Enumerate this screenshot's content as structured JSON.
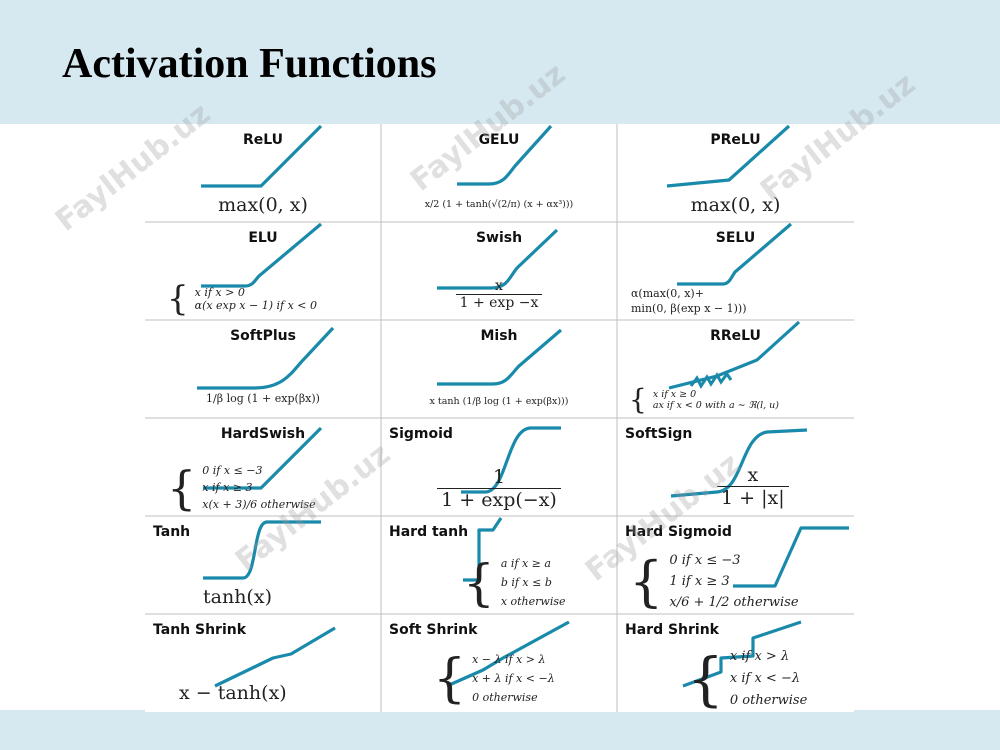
{
  "title": "Activation Functions",
  "watermark": "FaylHub.uz",
  "colors": {
    "curve": "#1a8aab",
    "band": "#d6e9f1",
    "grid_line": "#bfbfbf"
  },
  "cells": [
    {
      "name": "ReLU",
      "curve": "relu",
      "formula": "max(0, x)"
    },
    {
      "name": "GELU",
      "curve": "gelu",
      "formula": "x/2 (1 + tanh(√(2/π) (x + αx³)))"
    },
    {
      "name": "PReLU",
      "curve": "prelu",
      "formula": "max(0, x)"
    },
    {
      "name": "ELU",
      "curve": "elu",
      "cases": [
        "x if x > 0",
        "α(x exp x − 1) if x < 0"
      ]
    },
    {
      "name": "Swish",
      "curve": "swish",
      "num": "x",
      "den": "1 + exp −x"
    },
    {
      "name": "SELU",
      "curve": "selu",
      "lines": [
        "α(max(0, x)+",
        "min(0, β(exp x − 1)))"
      ]
    },
    {
      "name": "SoftPlus",
      "curve": "softplus",
      "formula": "1/β log (1 + exp(βx))"
    },
    {
      "name": "Mish",
      "curve": "mish",
      "formula": "x tanh (1/β log (1 + exp(βx)))"
    },
    {
      "name": "RReLU",
      "curve": "rrelu",
      "cases": [
        "x if x ≥ 0",
        "ax if x < 0 with a ∼ ℜ(l, u)"
      ]
    },
    {
      "name": "HardSwish",
      "curve": "hardswish",
      "cases": [
        "0 if x ≤ −3",
        "x if x ≥ 3",
        "x(x + 3)/6 otherwise"
      ]
    },
    {
      "name": "Sigmoid",
      "curve": "sigmoid",
      "num": "1",
      "den": "1 + exp(−x)"
    },
    {
      "name": "SoftSign",
      "curve": "softsign",
      "num": "x",
      "den": "1 + |x|"
    },
    {
      "name": "Tanh",
      "curve": "tanh",
      "formula": "tanh(x)"
    },
    {
      "name": "Hard tanh",
      "curve": "hardtanh",
      "cases": [
        "a if x ≥ a",
        "b if x ≤ b",
        "x otherwise"
      ]
    },
    {
      "name": "Hard Sigmoid",
      "curve": "hardsigmoid",
      "cases": [
        "0 if x ≤ −3",
        "1 if x ≥ 3",
        "x/6 + 1/2 otherwise"
      ]
    },
    {
      "name": "Tanh Shrink",
      "curve": "tanhshrink",
      "formula": "x − tanh(x)"
    },
    {
      "name": "Soft Shrink",
      "curve": "softshrink",
      "cases": [
        "x − λ if x > λ",
        "x + λ if x < −λ",
        "0 otherwise"
      ]
    },
    {
      "name": "Hard Shrink",
      "curve": "hardshrink",
      "cases": [
        "x if x > λ",
        "x if x < −λ",
        "0 otherwise"
      ]
    }
  ]
}
